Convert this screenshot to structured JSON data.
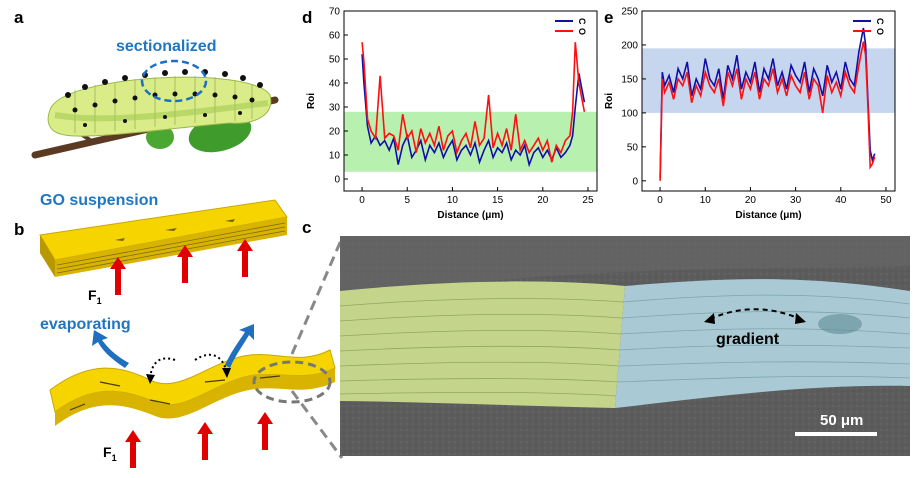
{
  "panels": {
    "a": {
      "letter": "a",
      "label": "sectionalized"
    },
    "b": {
      "letter": "b",
      "top_label": "GO suspension",
      "bottom_label": "evaporating",
      "force": "F",
      "force_sub": "1"
    },
    "c": {
      "letter": "c",
      "gradient_label": "gradient",
      "scale_bar": "50 μm"
    },
    "d": {
      "letter": "d"
    },
    "e": {
      "letter": "e"
    }
  },
  "colors": {
    "carbon": "#1010a8",
    "oxygen": "#ff1010",
    "green_band": "#b8f0b0",
    "blue_band": "#c6d6ee",
    "accent": "#1f77c4"
  },
  "chart_data": [
    {
      "id": "d",
      "type": "line",
      "xlabel": "Distance (μm)",
      "ylabel": "Roi",
      "xlim": [
        -2,
        26
      ],
      "ylim": [
        -5,
        70
      ],
      "xticks": [
        0,
        5,
        10,
        15,
        20,
        25
      ],
      "yticks": [
        0,
        10,
        20,
        30,
        40,
        50,
        60,
        70
      ],
      "band": [
        3,
        28
      ],
      "legend": [
        "C",
        "O"
      ],
      "series": [
        {
          "name": "C",
          "x": [
            0,
            0.2,
            0.6,
            1,
            1.5,
            2,
            2.5,
            3,
            3.5,
            4,
            4.5,
            5,
            5.5,
            6,
            6.5,
            7,
            7.5,
            8,
            8.5,
            9,
            9.5,
            10,
            10.5,
            11,
            11.5,
            12,
            12.5,
            13,
            13.5,
            14,
            14.5,
            15,
            15.5,
            16,
            16.5,
            17,
            17.5,
            18,
            18.5,
            19,
            19.5,
            20,
            20.5,
            21,
            21.5,
            22,
            22.5,
            23,
            23.3,
            23.6,
            24,
            24.3,
            24.6
          ],
          "y": [
            52,
            40,
            22,
            15,
            18,
            14,
            16,
            12,
            17,
            6,
            14,
            18,
            9,
            12,
            16,
            8,
            14,
            11,
            15,
            9,
            13,
            16,
            8,
            12,
            14,
            10,
            15,
            7,
            12,
            16,
            9,
            13,
            11,
            15,
            8,
            12,
            10,
            14,
            6,
            11,
            13,
            9,
            12,
            8,
            13,
            9,
            11,
            14,
            18,
            30,
            44,
            38,
            32
          ]
        },
        {
          "name": "O",
          "x": [
            0,
            0.2,
            0.6,
            1,
            1.5,
            2,
            2.5,
            3,
            3.5,
            4,
            4.5,
            5,
            5.5,
            6,
            6.5,
            7,
            7.5,
            8,
            8.5,
            9,
            9.5,
            10,
            10.5,
            11,
            11.5,
            12,
            12.5,
            13,
            13.5,
            14,
            14.5,
            15,
            15.5,
            16,
            16.5,
            17,
            17.5,
            18,
            18.5,
            19,
            19.5,
            20,
            20.5,
            21,
            21.5,
            22,
            22.5,
            23,
            23.3,
            23.6,
            24,
            24.3,
            24.6
          ],
          "y": [
            57,
            49,
            25,
            20,
            17,
            43,
            17,
            19,
            18,
            12,
            27,
            17,
            20,
            11,
            21,
            15,
            19,
            14,
            22,
            12,
            18,
            20,
            11,
            16,
            19,
            13,
            24,
            14,
            17,
            35,
            13,
            19,
            14,
            21,
            12,
            27,
            12,
            16,
            11,
            14,
            17,
            12,
            16,
            7,
            14,
            11,
            16,
            18,
            28,
            57,
            40,
            34,
            28
          ]
        }
      ]
    },
    {
      "id": "e",
      "type": "line",
      "xlabel": "Distance (μm)",
      "ylabel": "Roi",
      "xlim": [
        -4,
        52
      ],
      "ylim": [
        -15,
        250
      ],
      "xticks": [
        0,
        10,
        20,
        30,
        40,
        50
      ],
      "yticks": [
        0,
        50,
        100,
        150,
        200,
        250
      ],
      "band": [
        100,
        195
      ],
      "legend": [
        "C",
        "O"
      ],
      "series": [
        {
          "name": "C",
          "x": [
            0,
            0.5,
            1,
            2,
            3,
            4,
            5,
            6,
            7,
            8,
            9,
            10,
            11,
            12,
            13,
            14,
            15,
            16,
            17,
            18,
            19,
            20,
            21,
            22,
            23,
            24,
            25,
            26,
            27,
            28,
            29,
            30,
            31,
            32,
            33,
            34,
            35,
            36,
            37,
            38,
            39,
            40,
            41,
            42,
            43,
            44,
            45,
            45.5,
            46,
            46.5,
            47,
            47.5
          ],
          "y": [
            5,
            160,
            140,
            155,
            130,
            165,
            150,
            175,
            125,
            150,
            135,
            180,
            150,
            140,
            165,
            120,
            170,
            150,
            185,
            135,
            160,
            145,
            175,
            130,
            165,
            150,
            180,
            140,
            160,
            135,
            170,
            155,
            145,
            175,
            130,
            165,
            150,
            125,
            170,
            145,
            160,
            135,
            175,
            150,
            140,
            190,
            225,
            200,
            120,
            45,
            30,
            40
          ]
        },
        {
          "name": "O",
          "x": [
            0,
            0.5,
            1,
            2,
            3,
            4,
            5,
            6,
            7,
            8,
            9,
            10,
            11,
            12,
            13,
            14,
            15,
            16,
            17,
            18,
            19,
            20,
            21,
            22,
            23,
            24,
            25,
            26,
            27,
            28,
            29,
            30,
            31,
            32,
            33,
            34,
            35,
            36,
            37,
            38,
            39,
            40,
            41,
            42,
            43,
            44,
            45,
            45.5,
            46,
            46.5,
            47,
            47.5
          ],
          "y": [
            0,
            150,
            130,
            145,
            120,
            150,
            140,
            160,
            115,
            140,
            125,
            160,
            140,
            130,
            150,
            110,
            160,
            140,
            165,
            120,
            150,
            135,
            160,
            120,
            150,
            140,
            165,
            130,
            150,
            125,
            155,
            140,
            130,
            160,
            120,
            150,
            140,
            100,
            155,
            130,
            145,
            125,
            160,
            140,
            130,
            170,
            205,
            185,
            110,
            20,
            25,
            35
          ]
        }
      ]
    }
  ]
}
